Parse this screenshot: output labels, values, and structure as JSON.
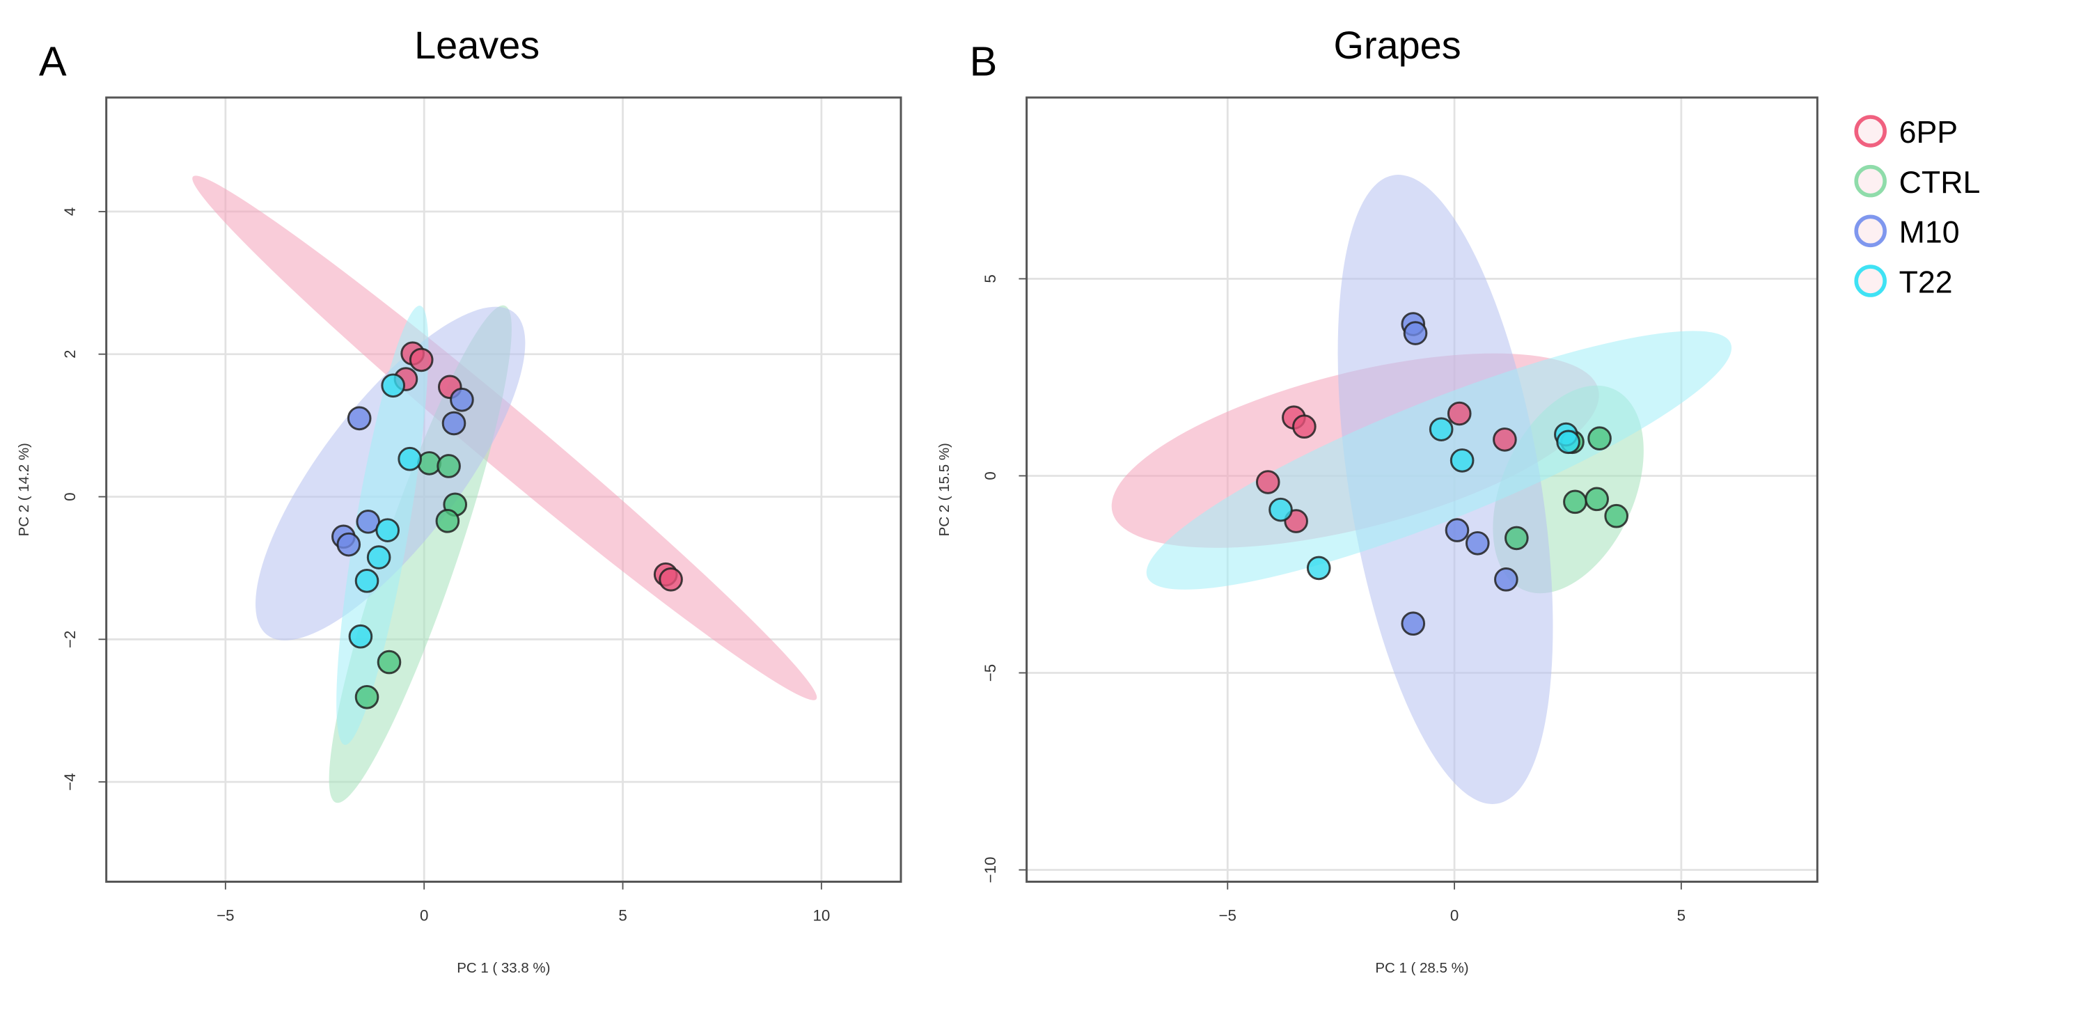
{
  "groups": [
    {
      "name": "6PP",
      "color": "#e8527a",
      "fill": "#f4a3b9",
      "legend_color": "#f0607f"
    },
    {
      "name": "CTRL",
      "color": "#4cc47f",
      "fill": "#a5e2bc",
      "legend_color": "#8fdcaa"
    },
    {
      "name": "M10",
      "color": "#6f8ae6",
      "fill": "#b7c1f0",
      "legend_color": "#7f97ee"
    },
    {
      "name": "T22",
      "color": "#35dcf0",
      "fill": "#a3eef8",
      "legend_color": "#3fe2f4"
    }
  ],
  "chart_data": [
    {
      "type": "scatter",
      "panel": "A",
      "title": "Leaves",
      "xlabel": "PC 1 ( 33.8 %)",
      "ylabel": "PC 2 ( 14.2 %)",
      "xlim": [
        -8,
        12
      ],
      "ylim": [
        -5.4,
        5.6
      ],
      "xticks": [
        -5,
        0,
        5,
        10
      ],
      "yticks": [
        -4,
        -2,
        0,
        2,
        4
      ],
      "grid": true,
      "series": [
        {
          "name": "6PP",
          "points": [
            [
              -0.29,
              2.01
            ],
            [
              -0.07,
              1.92
            ],
            [
              -0.46,
              1.65
            ],
            [
              0.65,
              1.54
            ],
            [
              6.08,
              -1.09
            ],
            [
              6.21,
              -1.16
            ]
          ],
          "ellipse": {
            "p1": [
              -5.82,
              4.49
            ],
            "p2": [
              9.87,
              -2.84
            ],
            "minor_ratio": 0.072
          }
        },
        {
          "name": "CTRL",
          "points": [
            [
              0.13,
              0.47
            ],
            [
              0.62,
              0.43
            ],
            [
              0.78,
              -0.11
            ],
            [
              0.59,
              -0.34
            ],
            [
              -0.88,
              -2.32
            ],
            [
              -1.44,
              -2.81
            ]
          ],
          "ellipse": {
            "p1": [
              2.03,
              2.68
            ],
            "p2": [
              -2.22,
              -4.29
            ],
            "minor_ratio": 0.14
          }
        },
        {
          "name": "M10",
          "points": [
            [
              0.95,
              1.36
            ],
            [
              0.75,
              1.03
            ],
            [
              -1.63,
              1.1
            ],
            [
              -1.41,
              -0.35
            ],
            [
              -2.03,
              -0.56
            ],
            [
              -1.9,
              -0.67
            ]
          ],
          "ellipse": {
            "p1": [
              -3.95,
              -1.94
            ],
            "p2": [
              2.25,
              2.59
            ],
            "minor_ratio": 0.34
          }
        },
        {
          "name": "T22",
          "points": [
            [
              -0.78,
              1.56
            ],
            [
              -0.36,
              0.53
            ],
            [
              -0.92,
              -0.47
            ],
            [
              -1.14,
              -0.85
            ],
            [
              -1.44,
              -1.18
            ],
            [
              -1.6,
              -1.96
            ]
          ],
          "ellipse": {
            "p1": [
              -0.1,
              2.68
            ],
            "p2": [
              -2.0,
              -3.48
            ],
            "minor_ratio": 0.12
          }
        }
      ]
    },
    {
      "type": "scatter",
      "panel": "B",
      "title": "Grapes",
      "xlabel": "PC 1 ( 28.5 %)",
      "ylabel": "PC 2 ( 15.5 %)",
      "xlim": [
        -9.43,
        8
      ],
      "ylim": [
        -10.3,
        9.6
      ],
      "xticks": [
        -5,
        0,
        5
      ],
      "yticks": [
        -10,
        -5,
        0,
        5
      ],
      "grid": true,
      "series": [
        {
          "name": "6PP",
          "points": [
            [
              -3.54,
              1.48
            ],
            [
              -3.31,
              1.25
            ],
            [
              -4.11,
              -0.16
            ],
            [
              -3.49,
              -1.15
            ],
            [
              0.11,
              1.58
            ],
            [
              1.11,
              0.92
            ]
          ],
          "ellipse": {
            "p1": [
              -7.54,
              -0.92
            ],
            "p2": [
              3.17,
              2.2
            ],
            "minor_ratio": 0.31
          }
        },
        {
          "name": "CTRL",
          "points": [
            [
              2.6,
              0.86
            ],
            [
              3.2,
              0.95
            ],
            [
              2.66,
              -0.66
            ],
            [
              3.14,
              -0.59
            ],
            [
              3.57,
              -1.02
            ],
            [
              1.37,
              -1.58
            ]
          ],
          "ellipse": {
            "p1": [
              3.51,
              2.2
            ],
            "p2": [
              1.51,
              -2.89
            ],
            "minor_ratio": 0.6
          }
        },
        {
          "name": "M10",
          "points": [
            [
              -0.91,
              3.85
            ],
            [
              -0.86,
              3.62
            ],
            [
              0.06,
              -1.38
            ],
            [
              0.51,
              -1.71
            ],
            [
              1.14,
              -2.63
            ],
            [
              -0.91,
              -3.75
            ]
          ],
          "ellipse": {
            "p1": [
              -1.34,
              7.63
            ],
            "p2": [
              0.94,
              -8.32
            ],
            "minor_ratio": 0.3
          }
        },
        {
          "name": "T22",
          "points": [
            [
              -0.29,
              1.18
            ],
            [
              0.17,
              0.39
            ],
            [
              2.46,
              1.05
            ],
            [
              2.51,
              0.86
            ],
            [
              -3.83,
              -0.86
            ],
            [
              -2.99,
              -2.34
            ]
          ],
          "ellipse": {
            "p1": [
              -6.77,
              -2.57
            ],
            "p2": [
              6.09,
              3.36
            ],
            "minor_ratio": 0.19
          }
        }
      ]
    }
  ]
}
